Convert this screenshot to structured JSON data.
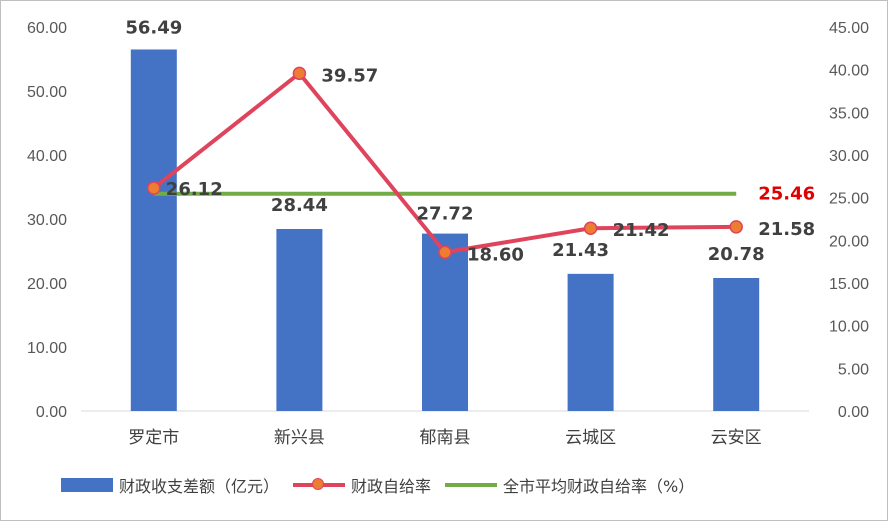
{
  "chart_data": {
    "type": "bar",
    "categories": [
      "罗定市",
      "新兴县",
      "郁南县",
      "云城区",
      "云安区"
    ],
    "series": [
      {
        "name": "财政收支差额（亿元）",
        "type": "bar",
        "axis": "left",
        "values": [
          56.49,
          28.44,
          27.72,
          21.43,
          20.78
        ],
        "color": "#4472c4"
      },
      {
        "name": "财政自给率",
        "type": "line",
        "axis": "right",
        "values": [
          26.12,
          39.57,
          18.6,
          21.42,
          21.58
        ],
        "color": "#e0445c",
        "marker_color": "#ed7d31"
      },
      {
        "name": "全市平均财政自给率（%",
        "type": "line",
        "axis": "right",
        "values": [
          25.46,
          25.46,
          25.46,
          25.46,
          25.46
        ],
        "color": "#70ad47",
        "label": "25.46",
        "label_color": "#e00000"
      }
    ],
    "y_left": {
      "ylim": [
        0,
        60
      ],
      "ticks": [
        "0.00",
        "10.00",
        "20.00",
        "30.00",
        "40.00",
        "50.00",
        "60.00"
      ]
    },
    "y_right": {
      "ylim": [
        0,
        45
      ],
      "ticks": [
        "0.00",
        "5.00",
        "10.00",
        "15.00",
        "20.00",
        "25.00",
        "30.00",
        "35.00",
        "40.00",
        "45.00"
      ]
    },
    "bar_labels": [
      "56.49",
      "28.44",
      "27.72",
      "21.43",
      "20.78"
    ],
    "line_labels": [
      "26.12",
      "39.57",
      "18.60",
      "21.42",
      "21.58"
    ],
    "avg_label": "25.46",
    "grid": false,
    "legend_position": "bottom"
  },
  "legend": {
    "bar": "财政收支差额（亿元）",
    "line": "财政自给率",
    "avg": "全市平均财政自给率（%）"
  }
}
